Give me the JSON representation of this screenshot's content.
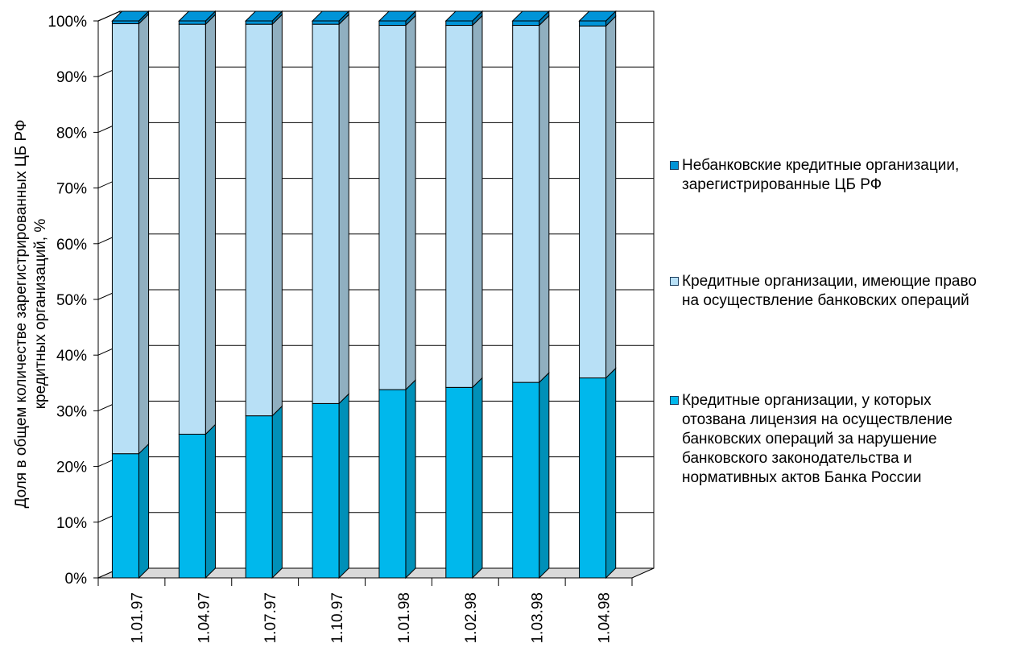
{
  "chart_data": {
    "type": "bar",
    "stacked": true,
    "three_d": true,
    "percent": true,
    "title": "",
    "xlabel": "",
    "ylabel": "Доля в общем количестве зарегистрированных ЦБ РФ кредитных организаций, %",
    "ylim": [
      0,
      100
    ],
    "ytick_labels": [
      "0%",
      "10%",
      "20%",
      "30%",
      "40%",
      "50%",
      "60%",
      "70%",
      "80%",
      "90%",
      "100%"
    ],
    "categories": [
      "1.01.97",
      "1.04.97",
      "1.07.97",
      "1.10.97",
      "1.01.98",
      "1.02.98",
      "1.03.98",
      "1.04.98"
    ],
    "grid": true,
    "legend_position": "right",
    "series": [
      {
        "name": "Кредитные организации, у которых отозвана лицензия на осуществление банковских операций за нарушение банковского законодательства и нормативных актов Банка России",
        "color": "#00b8ec",
        "values": [
          22.3,
          25.8,
          29.1,
          31.3,
          33.8,
          34.2,
          35.1,
          35.9
        ]
      },
      {
        "name": "Кредитные организации, имеющие право на осуществление банковских операций",
        "color": "#b8e0f6",
        "values": [
          77.2,
          73.6,
          70.3,
          68.1,
          65.4,
          65.0,
          64.1,
          63.2
        ]
      },
      {
        "name": "Небанковские кредитные организации, зарегистрированные ЦБ РФ",
        "color": "#0094d8",
        "values": [
          0.5,
          0.6,
          0.6,
          0.6,
          0.8,
          0.8,
          0.8,
          0.9
        ]
      }
    ]
  },
  "legend": {
    "items": [
      {
        "label": "Небанковские кредитные организации,\nзарегистрированные ЦБ РФ",
        "color": "#0094d8"
      },
      {
        "label": "Кредитные организации, имеющие право\nна осуществление банковских операций",
        "color": "#b8e0f6"
      },
      {
        "label": " Кредитные организации, у которых\nотозвана лицензия на осуществление\nбанковских операций за нарушение\nбанковского законодательства и\nнормативных актов Банка России",
        "color": "#00b8ec"
      }
    ]
  }
}
